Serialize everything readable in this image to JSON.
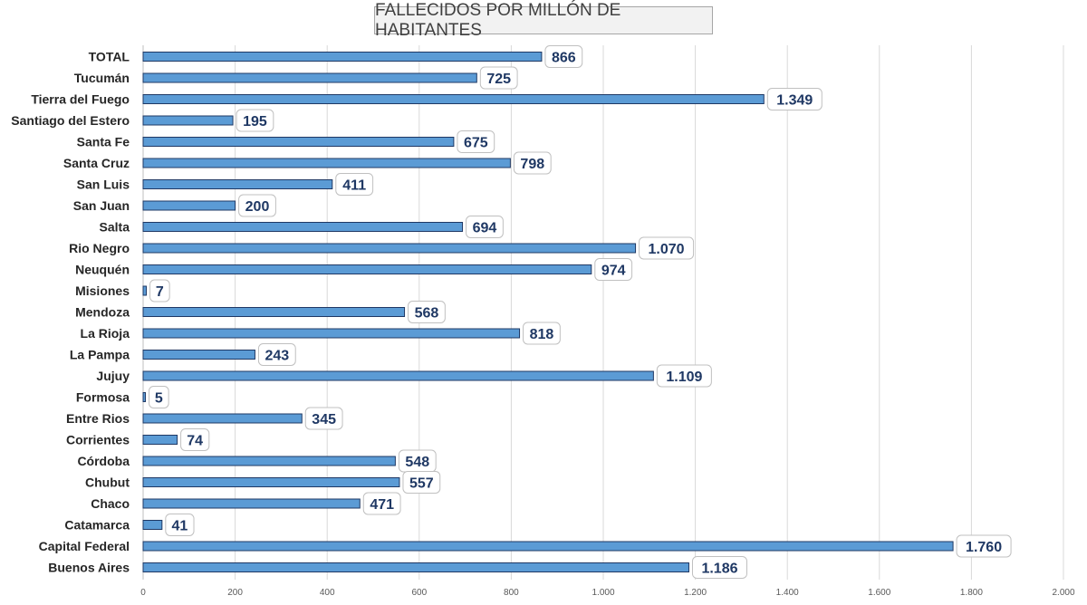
{
  "chart_data": {
    "type": "bar",
    "orientation": "horizontal",
    "title": "FALLECIDOS POR MILLÓN DE HABITANTES",
    "xlabel": "",
    "ylabel": "",
    "xlim": [
      0,
      2000
    ],
    "grid": true,
    "legend": "none",
    "bar_color": "#5b9bd5",
    "bar_border_color": "#1f3864",
    "label_color": "#1f3864",
    "tick_labels": [
      "0",
      "200",
      "400",
      "600",
      "800",
      "1.000",
      "1.200",
      "1.400",
      "1.600",
      "1.800",
      "2.000"
    ],
    "categories": [
      "TOTAL",
      "Tucumán",
      "Tierra del Fuego",
      "Santiago del Estero",
      "Santa Fe",
      "Santa Cruz",
      "San Luis",
      "San Juan",
      "Salta",
      "Rio Negro",
      "Neuquén",
      "Misiones",
      "Mendoza",
      "La Rioja",
      "La Pampa",
      "Jujuy",
      "Formosa",
      "Entre Rios",
      "Corrientes",
      "Córdoba",
      "Chubut",
      "Chaco",
      "Catamarca",
      "Capital Federal",
      "Buenos Aires"
    ],
    "values": [
      866,
      725,
      1349,
      195,
      675,
      798,
      411,
      200,
      694,
      1070,
      974,
      7,
      568,
      818,
      243,
      1109,
      5,
      345,
      74,
      548,
      557,
      471,
      41,
      1760,
      1186
    ],
    "value_labels": [
      "866",
      "725",
      "1.349",
      "195",
      "675",
      "798",
      "411",
      "200",
      "694",
      "1.070",
      "974",
      "7",
      "568",
      "818",
      "243",
      "1.109",
      "5",
      "345",
      "74",
      "548",
      "557",
      "471",
      "41",
      "1.760",
      "1.186"
    ]
  }
}
